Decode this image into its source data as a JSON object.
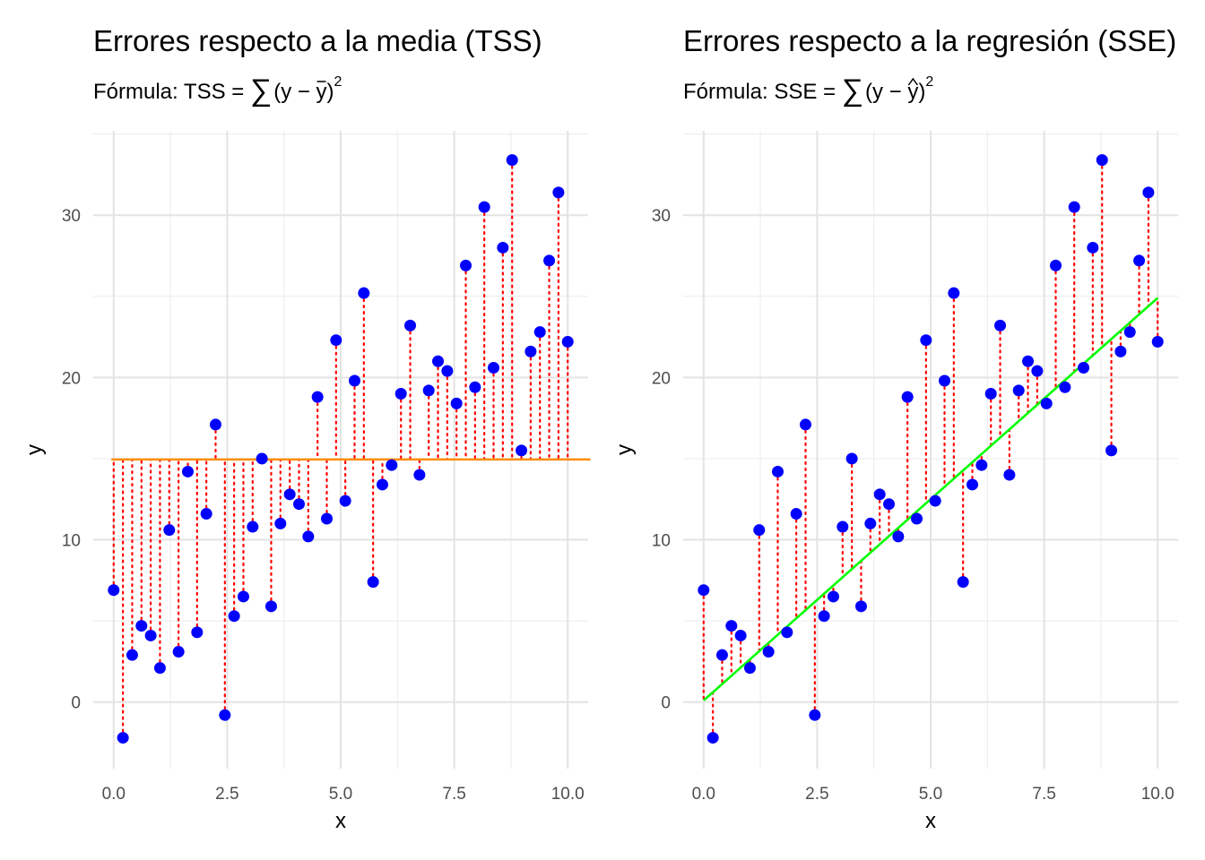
{
  "chart_data": [
    {
      "type": "scatter",
      "title": "Errores respecto a la media (TSS)",
      "subtitle": {
        "prefix": "Fórmula: TSS = ",
        "sum_symbol": "∑",
        "expr": "(y − y)",
        "exponent": "2",
        "accent": "bar"
      },
      "xlabel": "x",
      "ylabel": "y",
      "xlim": [
        -0.45,
        10.45
      ],
      "ylim": [
        -4.1,
        35.2
      ],
      "xticks": [
        0,
        2.5,
        5,
        7.5,
        10
      ],
      "xtick_labels": [
        "0.0",
        "2.5",
        "5.0",
        "7.5",
        "10.0"
      ],
      "yticks": [
        0,
        10,
        20,
        30
      ],
      "ytick_labels": [
        "0",
        "10",
        "20",
        "30"
      ],
      "grid": true,
      "reference_line": {
        "kind": "mean",
        "y": 14.95,
        "color": "#FF8C00"
      },
      "segment_color": "#FF0000",
      "point_color": "#0000FF"
    },
    {
      "type": "scatter",
      "title": "Errores respecto a la regresión (SSE)",
      "subtitle": {
        "prefix": "Fórmula: SSE = ",
        "sum_symbol": "∑",
        "expr": "(y − y)",
        "exponent": "2",
        "accent": "hat"
      },
      "xlabel": "x",
      "ylabel": "y",
      "xlim": [
        -0.45,
        10.45
      ],
      "ylim": [
        -4.1,
        35.2
      ],
      "xticks": [
        0,
        2.5,
        5,
        7.5,
        10
      ],
      "xtick_labels": [
        "0.0",
        "2.5",
        "5.0",
        "7.5",
        "10.0"
      ],
      "yticks": [
        0,
        10,
        20,
        30
      ],
      "ytick_labels": [
        "0",
        "10",
        "20",
        "30"
      ],
      "grid": true,
      "reference_line": {
        "kind": "regression",
        "intercept": 0.1,
        "slope": 2.48,
        "color": "#00FF00"
      },
      "segment_color": "#FF0000",
      "point_color": "#0000FF"
    }
  ],
  "points": {
    "x": [
      0,
      0.204,
      0.408,
      0.612,
      0.816,
      1.02,
      1.224,
      1.429,
      1.633,
      1.837,
      2.041,
      2.245,
      2.449,
      2.653,
      2.857,
      3.061,
      3.265,
      3.469,
      3.673,
      3.878,
      4.082,
      4.286,
      4.49,
      4.694,
      4.898,
      5.102,
      5.306,
      5.51,
      5.714,
      5.918,
      6.122,
      6.327,
      6.531,
      6.735,
      6.939,
      7.143,
      7.347,
      7.551,
      7.755,
      7.959,
      8.163,
      8.367,
      8.571,
      8.776,
      8.98,
      9.184,
      9.388,
      9.592,
      9.796,
      10
    ],
    "y": [
      6.9,
      -2.2,
      2.9,
      4.7,
      4.1,
      2.1,
      10.6,
      3.1,
      14.2,
      4.3,
      11.6,
      17.1,
      -0.8,
      5.3,
      6.5,
      10.8,
      15.0,
      5.9,
      11.0,
      12.8,
      12.2,
      10.2,
      18.8,
      11.3,
      22.3,
      12.4,
      19.8,
      25.2,
      7.4,
      13.4,
      14.6,
      19.0,
      23.2,
      14.0,
      19.2,
      21.0,
      20.4,
      18.4,
      26.9,
      19.4,
      30.5,
      20.6,
      28.0,
      33.4,
      15.5,
      21.6,
      22.8,
      27.2,
      31.4,
      22.2
    ]
  }
}
